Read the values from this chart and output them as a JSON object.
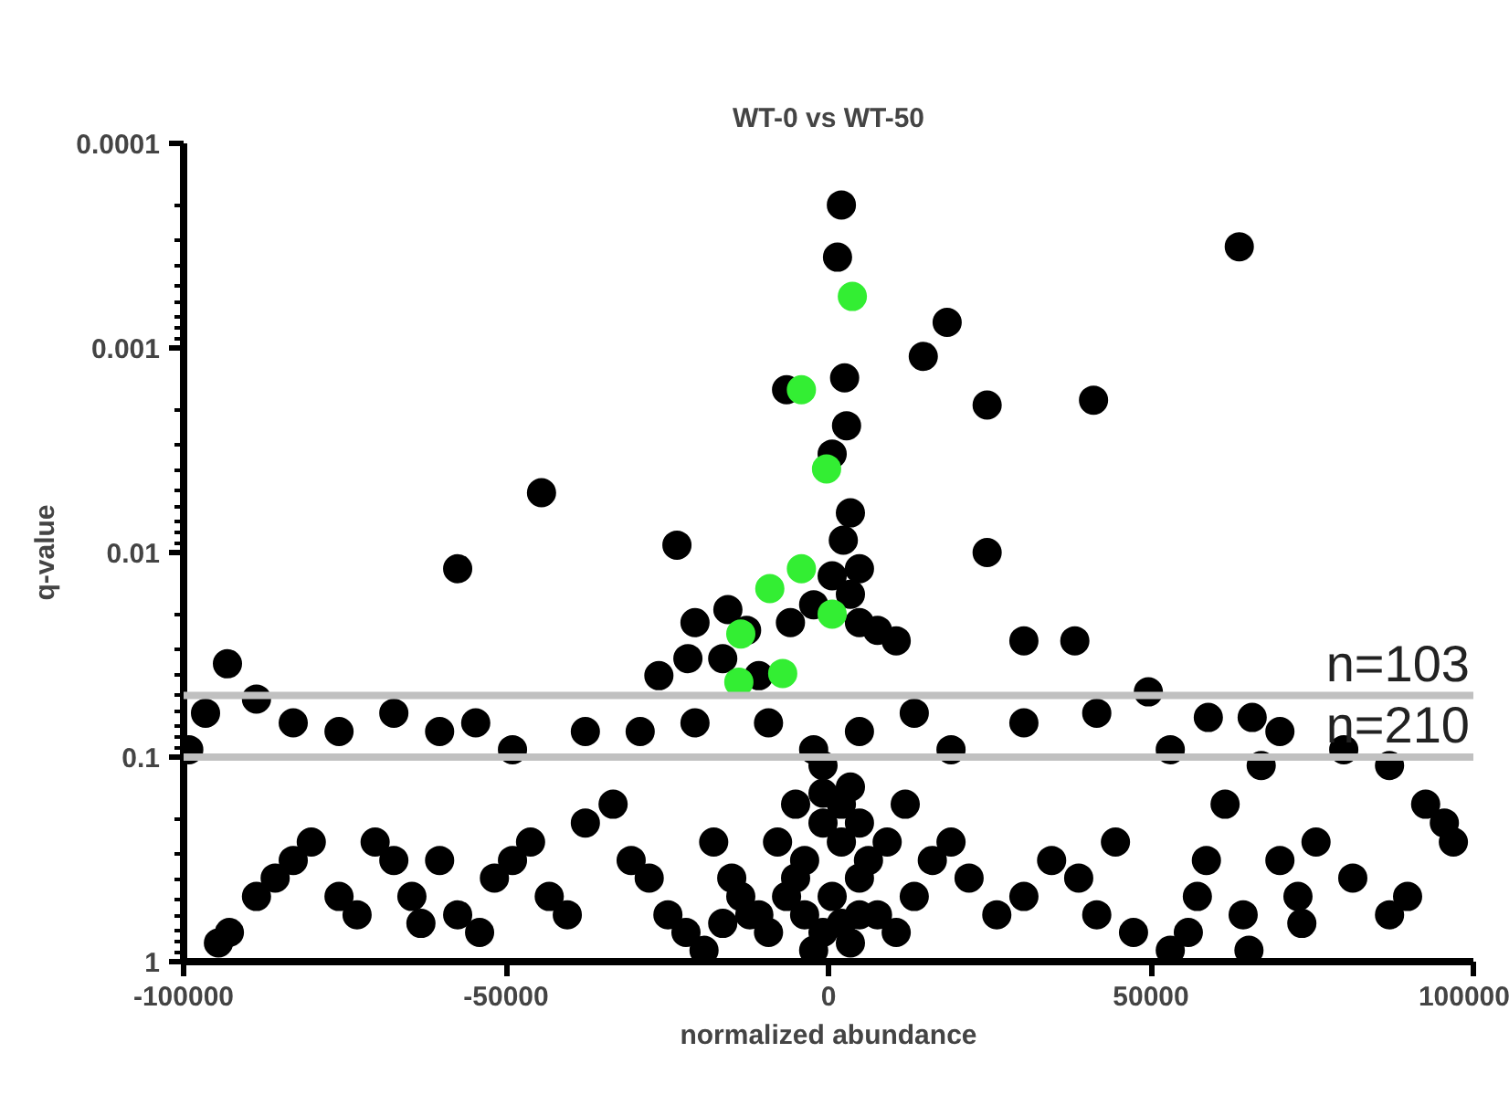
{
  "chart_data": {
    "type": "scatter",
    "title": "WT-0 vs WT-50",
    "xlabel": "normalized abundance",
    "ylabel": "q-value",
    "xlim": [
      -100000,
      100000
    ],
    "ylim": [
      1,
      0.0001
    ],
    "log": "y",
    "marker": "circle",
    "xticks": [
      -100000,
      -50000,
      0,
      50000,
      100000
    ],
    "yticks": [
      1,
      0.1,
      0.01,
      0.001,
      0.0001
    ],
    "series": [
      {
        "color": "#000000",
        "x": [
          2000,
          1400,
          63700,
          18400,
          14700,
          2500,
          -6500,
          41100,
          24600,
          2800,
          570,
          3400,
          -44500,
          2300,
          24600,
          -23500,
          -57500,
          -15600,
          -20700,
          -12700,
          -5900,
          -2300,
          570,
          3400,
          4800,
          7600,
          10500,
          30300,
          38200,
          4800,
          -21800,
          -26300,
          -16400,
          -10800,
          49600,
          58900,
          65700,
          -96600,
          -99200,
          -93200,
          -94600,
          -92900,
          -88700,
          -85800,
          -83000,
          -80200,
          -75900,
          -73100,
          -70300,
          -67400,
          -64600,
          -63200,
          -60300,
          -57500,
          -54100,
          -51800,
          -49000,
          -46200,
          -43300,
          -40500,
          -37700,
          -33400,
          -30600,
          -27800,
          -24900,
          -22100,
          -19300,
          -17800,
          -15000,
          -12200,
          -9300,
          -6500,
          -3700,
          -850,
          2000,
          4800,
          7600,
          10500,
          13300,
          16100,
          19000,
          21800,
          26100,
          30300,
          34600,
          38800,
          41600,
          44500,
          47300,
          53000,
          57200,
          58600,
          61500,
          64300,
          67100,
          70000,
          72800,
          75600,
          81300,
          87000,
          89800,
          92600,
          95500,
          96900,
          55800,
          65200,
          73400,
          -88700,
          -83000,
          -75900,
          -67400,
          -60300,
          -54700,
          -49000,
          -37700,
          -29200,
          -20700,
          -9300,
          4800,
          13300,
          19000,
          30300,
          41600,
          53000,
          70000,
          87000,
          79900,
          -3700,
          -2300,
          -850,
          570,
          2000,
          3400,
          4800,
          6200,
          -5100,
          -7900,
          -10800,
          -13600,
          -16400,
          -850,
          2000,
          -850,
          -2300,
          3400,
          4800,
          -5100,
          9100,
          11900
        ],
        "values": [
          0.0002,
          0.00036,
          0.00032,
          0.00075,
          0.0011,
          0.0014,
          0.0016,
          0.0018,
          0.0019,
          0.0024,
          0.0033,
          0.0064,
          0.0051,
          0.0087,
          0.01,
          0.0092,
          0.012,
          0.019,
          0.022,
          0.024,
          0.022,
          0.018,
          0.013,
          0.016,
          0.022,
          0.024,
          0.027,
          0.027,
          0.027,
          0.012,
          0.033,
          0.04,
          0.033,
          0.04,
          0.048,
          0.064,
          0.064,
          0.061,
          0.092,
          0.035,
          0.81,
          0.72,
          0.48,
          0.39,
          0.32,
          0.26,
          0.48,
          0.59,
          0.26,
          0.32,
          0.48,
          0.65,
          0.32,
          0.59,
          0.72,
          0.39,
          0.32,
          0.26,
          0.48,
          0.59,
          0.21,
          0.17,
          0.32,
          0.39,
          0.59,
          0.72,
          0.88,
          0.26,
          0.39,
          0.59,
          0.72,
          0.48,
          0.32,
          0.21,
          0.26,
          0.39,
          0.59,
          0.72,
          0.48,
          0.32,
          0.26,
          0.39,
          0.59,
          0.48,
          0.32,
          0.39,
          0.59,
          0.26,
          0.72,
          0.88,
          0.48,
          0.32,
          0.17,
          0.59,
          0.11,
          0.32,
          0.48,
          0.26,
          0.39,
          0.59,
          0.48,
          0.17,
          0.21,
          0.26,
          0.72,
          0.88,
          0.65,
          0.052,
          0.068,
          0.075,
          0.061,
          0.075,
          0.068,
          0.092,
          0.075,
          0.075,
          0.068,
          0.068,
          0.075,
          0.061,
          0.092,
          0.068,
          0.061,
          0.092,
          0.075,
          0.11,
          0.092,
          0.59,
          0.88,
          0.72,
          0.48,
          0.65,
          0.81,
          0.59,
          0.32,
          0.39,
          0.26,
          0.59,
          0.48,
          0.65,
          0.15,
          0.17,
          0.11,
          0.092,
          0.14,
          0.21,
          0.17,
          0.26,
          0.17
        ]
      },
      {
        "color": "#33ee33",
        "x": [
          3700,
          -4200,
          -300,
          -4200,
          -9100,
          570,
          -13600,
          -7100,
          -13900
        ],
        "values": [
          0.00056,
          0.0016,
          0.0039,
          0.012,
          0.015,
          0.02,
          0.025,
          0.039,
          0.043
        ]
      }
    ],
    "ref_lines": [
      {
        "axis": "y",
        "value": 0.05,
        "color": "#c0c0c0"
      },
      {
        "axis": "y",
        "value": 0.1,
        "color": "#c0c0c0"
      }
    ],
    "annotations": [
      "n=103",
      "n=210"
    ]
  }
}
